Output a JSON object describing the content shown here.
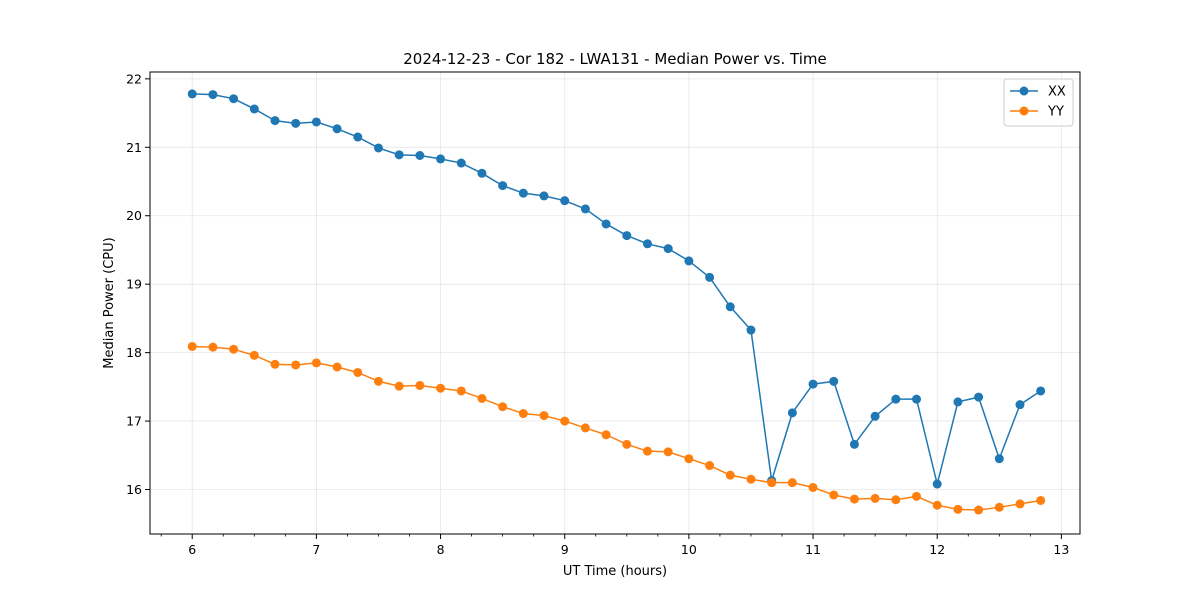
{
  "chart_data": {
    "type": "line",
    "title": "2024-12-23 - Cor 182 - LWA131 - Median Power vs. Time",
    "xlabel": "UT Time (hours)",
    "ylabel": "Median Power (CPU)",
    "xlim": [
      5.66,
      13.15
    ],
    "ylim": [
      15.35,
      22.1
    ],
    "xticks": [
      6,
      7,
      8,
      9,
      10,
      11,
      12,
      13
    ],
    "xtick_labels": [
      "6",
      "7",
      "8",
      "9",
      "10",
      "11",
      "12",
      "13"
    ],
    "yticks": [
      16,
      17,
      18,
      19,
      20,
      21,
      22
    ],
    "ytick_labels": [
      "16",
      "17",
      "18",
      "19",
      "20",
      "21",
      "22"
    ],
    "grid": true,
    "legend_position": "top-right",
    "x": [
      6.0,
      6.1667,
      6.3333,
      6.5,
      6.6667,
      6.8333,
      7.0,
      7.1667,
      7.3333,
      7.5,
      7.6667,
      7.8333,
      8.0,
      8.1667,
      8.3333,
      8.5,
      8.6667,
      8.8333,
      9.0,
      9.1667,
      9.3333,
      9.5,
      9.6667,
      9.8333,
      10.0,
      10.1667,
      10.3333,
      10.5,
      10.6667,
      10.8333,
      11.0,
      11.1667,
      11.3333,
      11.5,
      11.6667,
      11.8333,
      12.0,
      12.1667,
      12.3333,
      12.5,
      12.6667,
      12.8333
    ],
    "series": [
      {
        "name": "XX",
        "color": "#1f77b4",
        "values": [
          21.78,
          21.77,
          21.71,
          21.56,
          21.39,
          21.35,
          21.37,
          21.27,
          21.15,
          20.99,
          20.89,
          20.88,
          20.83,
          20.77,
          20.62,
          20.44,
          20.33,
          20.29,
          20.22,
          20.1,
          19.88,
          19.71,
          19.59,
          19.52,
          19.34,
          19.1,
          18.67,
          18.33,
          16.13,
          17.12,
          17.54,
          17.58,
          16.66,
          17.07,
          17.32,
          17.32,
          16.08,
          17.28,
          17.35,
          16.45,
          17.24,
          17.44
        ]
      },
      {
        "name": "YY",
        "color": "#ff7f0e",
        "values": [
          18.09,
          18.08,
          18.05,
          17.96,
          17.83,
          17.82,
          17.85,
          17.79,
          17.71,
          17.58,
          17.51,
          17.52,
          17.48,
          17.44,
          17.33,
          17.21,
          17.11,
          17.08,
          17.0,
          16.9,
          16.8,
          16.66,
          16.56,
          16.55,
          16.45,
          16.35,
          16.21,
          16.15,
          16.1,
          16.1,
          16.03,
          15.92,
          15.86,
          15.87,
          15.85,
          15.9,
          15.77,
          15.71,
          15.7,
          15.74,
          15.79,
          15.84
        ]
      }
    ]
  }
}
